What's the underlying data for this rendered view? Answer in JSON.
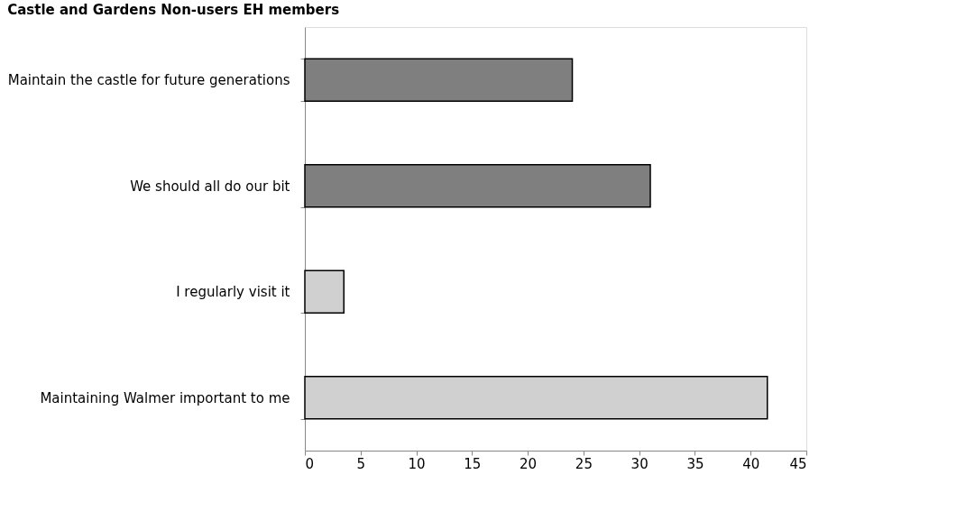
{
  "chart_data": {
    "type": "bar",
    "orientation": "horizontal",
    "title": "Castle and Gardens Non-users EH members",
    "categories": [
      "Maintain the castle for future generations",
      "We should all do our bit",
      "I regularly visit it",
      "Maintaining Walmer  important to me"
    ],
    "values": [
      24,
      31,
      3.5,
      41.5
    ],
    "colors": [
      "#7f7f7f",
      "#7f7f7f",
      "#d0d0d0",
      "#d0d0d0"
    ],
    "xlim": [
      0,
      45
    ],
    "xticks": [
      0,
      5,
      10,
      15,
      20,
      25,
      30,
      35,
      40,
      45
    ],
    "grid": false
  }
}
